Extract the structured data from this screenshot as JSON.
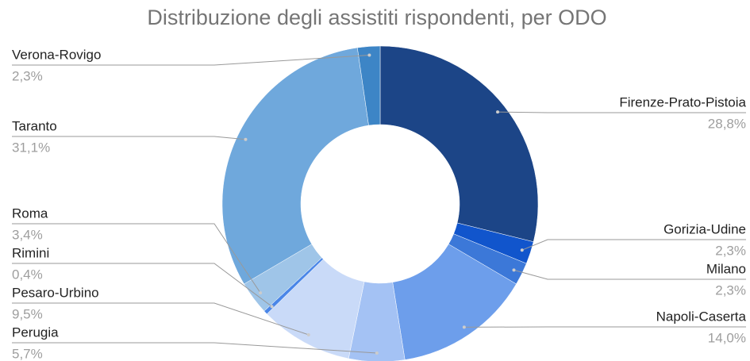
{
  "chart_data": {
    "type": "pie",
    "title": "Distribuzione degli assistiti rispondenti, per ODO",
    "categories": [
      "Firenze-Prato-Pistoia",
      "Gorizia-Udine",
      "Milano",
      "Napoli-Caserta",
      "Perugia",
      "Pesaro-Urbino",
      "Rimini",
      "Roma",
      "Taranto",
      "Verona-Rovigo"
    ],
    "values": [
      28.8,
      2.3,
      2.3,
      14.0,
      5.7,
      9.5,
      0.4,
      3.4,
      31.1,
      2.3
    ],
    "value_labels": [
      "28,8%",
      "2,3%",
      "2,3%",
      "14,0%",
      "5,7%",
      "9,5%",
      "0,4%",
      "3,4%",
      "31,1%",
      "2,3%"
    ],
    "colors": [
      "#1c4587",
      "#1155cc",
      "#3c78d8",
      "#6d9eeb",
      "#a4c2f4",
      "#c9daf8",
      "#4a86e8",
      "#9fc5e8",
      "#6fa8dc",
      "#3d85c6"
    ],
    "donut": true
  }
}
